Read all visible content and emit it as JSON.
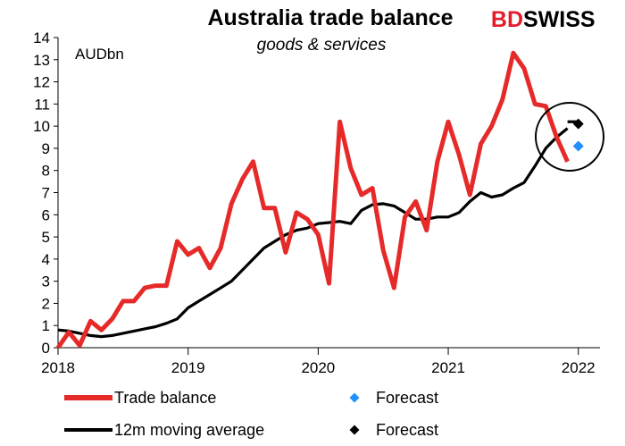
{
  "logo": {
    "part1": "BD",
    "part2": "SWISS"
  },
  "colors": {
    "trade": "#e62a2a",
    "avg": "#000000",
    "forecast_trade": "#1e90ff",
    "forecast_avg": "#000000"
  },
  "chart_data": {
    "type": "line",
    "title": "Australia trade balance",
    "subtitle": "goods & services",
    "unit_label": "AUDbn",
    "ylim": [
      0,
      14
    ],
    "y_ticks": [
      "0",
      "1",
      "2",
      "3",
      "4",
      "5",
      "6",
      "7",
      "8",
      "9",
      "10",
      "11",
      "12",
      "13",
      "14"
    ],
    "xlim": [
      "2018-01",
      "2022-03"
    ],
    "x_ticks": [
      "2018",
      "2019",
      "2020",
      "2021",
      "2022"
    ],
    "grid": false,
    "legend_position": "bottom",
    "series": [
      {
        "name": "Trade balance",
        "color": "#e62a2a",
        "x": [
          "2018-01",
          "2018-02",
          "2018-03",
          "2018-04",
          "2018-05",
          "2018-06",
          "2018-07",
          "2018-08",
          "2018-09",
          "2018-10",
          "2018-11",
          "2018-12",
          "2019-01",
          "2019-02",
          "2019-03",
          "2019-04",
          "2019-05",
          "2019-06",
          "2019-07",
          "2019-08",
          "2019-09",
          "2019-10",
          "2019-11",
          "2019-12",
          "2020-01",
          "2020-02",
          "2020-03",
          "2020-04",
          "2020-05",
          "2020-06",
          "2020-07",
          "2020-08",
          "2020-09",
          "2020-10",
          "2020-11",
          "2020-12",
          "2021-01",
          "2021-02",
          "2021-03",
          "2021-04",
          "2021-05",
          "2021-06",
          "2021-07",
          "2021-08",
          "2021-09",
          "2021-10",
          "2021-11",
          "2021-12"
        ],
        "values": [
          0.0,
          0.7,
          0.1,
          1.2,
          0.8,
          1.3,
          2.1,
          2.1,
          2.7,
          2.8,
          2.8,
          4.8,
          4.2,
          4.5,
          3.6,
          4.5,
          6.5,
          7.6,
          8.4,
          6.3,
          6.3,
          4.3,
          6.1,
          5.8,
          5.1,
          2.9,
          10.2,
          8.1,
          6.9,
          7.2,
          4.4,
          2.7,
          5.9,
          6.6,
          5.3,
          8.4,
          10.2,
          8.7,
          6.9,
          9.2,
          10.0,
          11.2,
          13.3,
          12.6,
          11.0,
          10.9,
          9.5,
          8.4
        ]
      },
      {
        "name": "12m moving average",
        "color": "#000000",
        "x": [
          "2018-01",
          "2018-02",
          "2018-03",
          "2018-04",
          "2018-05",
          "2018-06",
          "2018-07",
          "2018-08",
          "2018-09",
          "2018-10",
          "2018-11",
          "2018-12",
          "2019-01",
          "2019-02",
          "2019-03",
          "2019-04",
          "2019-05",
          "2019-06",
          "2019-07",
          "2019-08",
          "2019-09",
          "2019-10",
          "2019-11",
          "2019-12",
          "2020-01",
          "2020-02",
          "2020-03",
          "2020-04",
          "2020-05",
          "2020-06",
          "2020-07",
          "2020-08",
          "2020-09",
          "2020-10",
          "2020-11",
          "2020-12",
          "2021-01",
          "2021-02",
          "2021-03",
          "2021-04",
          "2021-05",
          "2021-06",
          "2021-07",
          "2021-08",
          "2021-09",
          "2021-10",
          "2021-11",
          "2021-12"
        ],
        "values": [
          0.8,
          0.75,
          0.65,
          0.55,
          0.5,
          0.55,
          0.65,
          0.75,
          0.85,
          0.95,
          1.1,
          1.3,
          1.8,
          2.1,
          2.4,
          2.7,
          3.0,
          3.5,
          4.0,
          4.5,
          4.8,
          5.1,
          5.3,
          5.4,
          5.6,
          5.65,
          5.7,
          5.6,
          6.2,
          6.45,
          6.5,
          6.4,
          6.1,
          5.8,
          5.8,
          5.9,
          5.9,
          6.1,
          6.6,
          7.0,
          6.8,
          6.9,
          7.2,
          7.45,
          8.2,
          9.0,
          9.5,
          9.9
        ]
      },
      {
        "name": "12m moving average",
        "color": "#000000",
        "x": [
          "2021-12",
          "2022-01"
        ],
        "values": [
          10.2,
          10.2
        ]
      }
    ],
    "forecasts": [
      {
        "name": "Forecast",
        "x": "2022-01",
        "value": 9.1,
        "color": "#1e90ff"
      },
      {
        "name": "Forecast",
        "x": "2022-01",
        "value": 10.1,
        "color": "#000000"
      }
    ],
    "legend": [
      {
        "label": "Trade balance",
        "kind": "line",
        "color": "#e62a2a"
      },
      {
        "label": "Forecast",
        "kind": "diamond",
        "color": "#1e90ff"
      },
      {
        "label": "12m moving average",
        "kind": "line",
        "color": "#000000"
      },
      {
        "label": "Forecast",
        "kind": "diamond",
        "color": "#000000"
      }
    ]
  }
}
